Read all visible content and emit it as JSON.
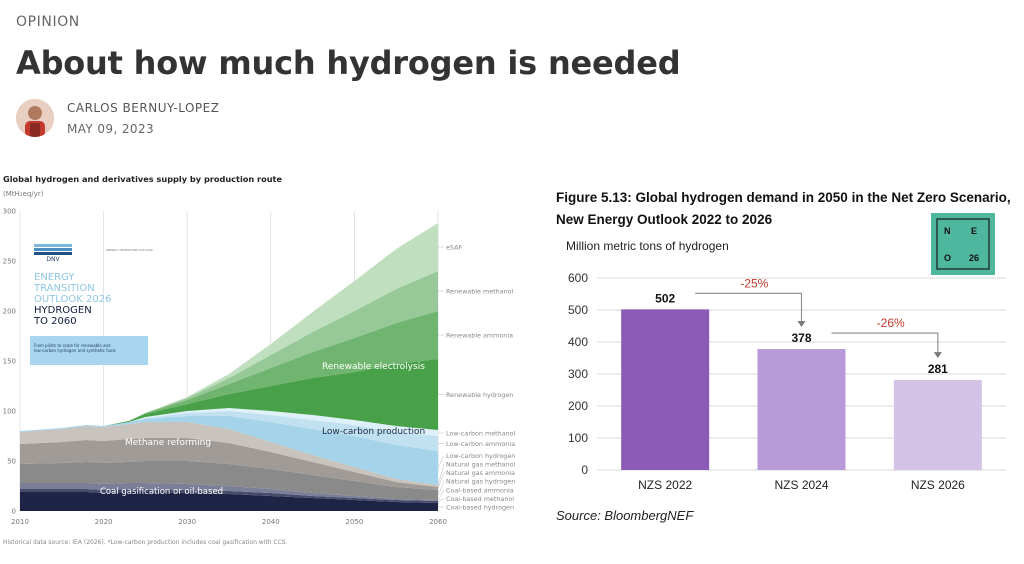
{
  "article": {
    "kicker": "OPINION",
    "title": "About how much hydrogen is needed",
    "author": "CARLOS BERNUY-LOPEZ",
    "date": "MAY 09, 2023"
  },
  "colors": {
    "coal": "#1d2445",
    "coal_mid": "#474c6c",
    "coal_light": "#7a7e97",
    "natgas_h2": "#8a8a8a",
    "natgas_nh3": "#a09b96",
    "natgas_meoh": "#c8c3bc",
    "lowc_h2": "#a4d3ea",
    "lowc_nh3": "#c2e1f0",
    "lowc_meoh": "#def0f8",
    "ren_h2": "#48a048",
    "ren_nh3": "#6fb46f",
    "ren_meoh": "#97c897",
    "esaf": "#bfdfbf",
    "bnef_2022": "#8c5bb6",
    "bnef_2024": "#b79ad7",
    "bnef_2026": "#d4c2e7",
    "delta_red": "#c0392b",
    "neo_badge": "#4fb79d"
  },
  "dnv": {
    "title": "Global hydrogen and derivatives supply by production route",
    "unit": "(MtH₂eq/yr)",
    "footnote": "Historical data source: IEA (2026). *Low-carbon production includes coal gasification with CCS.",
    "cover": {
      "logo": "DNV",
      "small_text": "ENERGY TRANSITION OUTLOOK",
      "line1": "ENERGY",
      "line2": "TRANSITION",
      "line3": "OUTLOOK 2026",
      "line4": "HYDROGEN",
      "line5": "TO 2060",
      "blurb1": "From pilots to scale for renewable and",
      "blurb2": "low-carbon hydrogen and synthetic fuels"
    },
    "area_labels": {
      "renewable": "Renewable electrolysis",
      "lowcarbon": "Low-carbon production",
      "methane": "Methane reforming",
      "coal": "Coal gasification or oil-based"
    }
  },
  "bnef": {
    "title_line1": "Figure 5.13: Global hydrogen demand in 2050 in the Net Zero Scenario,",
    "title_line2": "New Energy Outlook 2022 to 2026",
    "source": "Source: BloombergNEF",
    "badge": {
      "tl": "N",
      "tr": "E",
      "bl": "O",
      "br": "26"
    }
  },
  "chart_data": [
    {
      "type": "area",
      "stacked": true,
      "title": "Global hydrogen and derivatives supply by production route",
      "ylabel": "(MtH₂eq/yr)",
      "ylim": [
        0,
        300
      ],
      "xlim": [
        2010,
        2060
      ],
      "xticks": [
        2010,
        2020,
        2030,
        2040,
        2050,
        2060
      ],
      "yticks": [
        0,
        50,
        100,
        150,
        200,
        250,
        300
      ],
      "grid": "vertical",
      "x": [
        2010,
        2015,
        2018,
        2020,
        2023,
        2025,
        2030,
        2035,
        2040,
        2045,
        2050,
        2055,
        2060
      ],
      "series": [
        {
          "name": "Coal-based hydrogen",
          "values": [
            19,
            19,
            19,
            18,
            19,
            19,
            18,
            17,
            15,
            13,
            11,
            9,
            8
          ]
        },
        {
          "name": "Coal-based methanol",
          "values": [
            3,
            3,
            3,
            3,
            3,
            3,
            3,
            3,
            3,
            2,
            2,
            2,
            2
          ]
        },
        {
          "name": "Coal-based ammonia",
          "values": [
            6,
            6,
            6,
            6,
            6,
            6,
            6,
            5,
            4,
            3,
            2,
            1,
            1
          ]
        },
        {
          "name": "Natural gas hydrogen",
          "values": [
            19,
            20,
            21,
            21,
            21,
            22,
            23,
            22,
            20,
            18,
            15,
            12,
            10
          ]
        },
        {
          "name": "Natural gas ammonia",
          "values": [
            20,
            21,
            22,
            22,
            23,
            23,
            23,
            21,
            17,
            13,
            9,
            5,
            3
          ]
        },
        {
          "name": "Natural gas methanol",
          "values": [
            12,
            13,
            14,
            14,
            15,
            16,
            16,
            14,
            10,
            7,
            5,
            3,
            2
          ]
        },
        {
          "name": "Low-carbon hydrogen",
          "values": [
            1,
            1,
            1,
            1,
            2,
            3,
            6,
            13,
            20,
            26,
            31,
            34,
            34
          ]
        },
        {
          "name": "Low-carbon ammonia",
          "values": [
            0,
            0,
            0,
            0,
            0,
            1,
            3,
            5,
            7,
            9,
            11,
            13,
            15
          ]
        },
        {
          "name": "Low-carbon methanol",
          "values": [
            0,
            0,
            0,
            0,
            0,
            1,
            2,
            3,
            4,
            5,
            5,
            6,
            6
          ]
        },
        {
          "name": "Renewable hydrogen",
          "values": [
            0,
            0,
            0,
            0,
            1,
            3,
            7,
            14,
            25,
            37,
            48,
            62,
            71
          ]
        },
        {
          "name": "Renewable ammonia",
          "values": [
            0,
            0,
            0,
            0,
            0,
            1,
            4,
            10,
            18,
            26,
            34,
            41,
            48
          ]
        },
        {
          "name": "Renewable methanol",
          "values": [
            0,
            0,
            0,
            0,
            0,
            0,
            2,
            6,
            13,
            20,
            27,
            34,
            40
          ]
        },
        {
          "name": "eSAF",
          "values": [
            0,
            0,
            0,
            0,
            0,
            0,
            1,
            4,
            11,
            20,
            30,
            40,
            48
          ]
        }
      ],
      "legend_position": "right, inline labels",
      "annotations": [
        "Renewable electrolysis",
        "Low-carbon production",
        "Methane reforming",
        "Coal gasification or oil-based"
      ]
    },
    {
      "type": "bar",
      "title": "Figure 5.13: Global hydrogen demand in 2050 in the Net Zero Scenario, New Energy Outlook 2022 to 2026",
      "ylabel": "Million metric tons of hydrogen",
      "categories": [
        "NZS 2022",
        "NZS 2024",
        "NZS 2026"
      ],
      "values": [
        502,
        378,
        281
      ],
      "ylim": [
        0,
        600
      ],
      "yticks": [
        0,
        100,
        200,
        300,
        400,
        500,
        600
      ],
      "grid": "horizontal",
      "annotations": [
        "-25%",
        "-26%"
      ]
    }
  ]
}
